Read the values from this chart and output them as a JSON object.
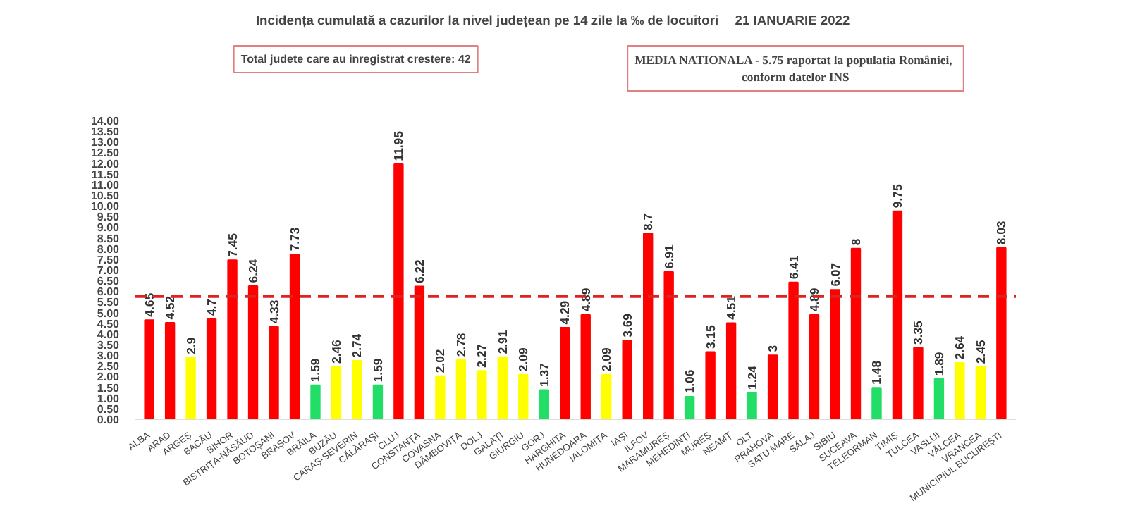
{
  "chart_data": {
    "type": "bar",
    "title": "Incidența cumulată a cazurilor la nivel județean pe 14 zile la ‰ de locuitori",
    "subtitle": "21 IANUARIE 2022",
    "annotations": [
      "Total judete care au inregistrat crestere: 42",
      "MEDIA NATIONALA - 5.75  raportat la populatia României, conform datelor INS"
    ],
    "categories": [
      "ALBA",
      "ARAD",
      "ARGEȘ",
      "BACĂU",
      "BIHOR",
      "BISTRIȚA-NĂSĂUD",
      "BOTOȘANI",
      "BRAȘOV",
      "BRĂILA",
      "BUZĂU",
      "CARAȘ-SEVERIN",
      "CĂLĂRAȘI",
      "CLUJ",
      "CONSTANȚA",
      "COVASNA",
      "DÂMBOVIȚA",
      "DOLJ",
      "GALAȚI",
      "GIURGIU",
      "GORJ",
      "HARGHITA",
      "HUNEDOARA",
      "IALOMIȚA",
      "IAȘI",
      "ILFOV",
      "MARAMUREȘ",
      "MEHEDINȚI",
      "MUREȘ",
      "NEAMȚ",
      "OLT",
      "PRAHOVA",
      "SATU MARE",
      "SĂLAJ",
      "SIBIU",
      "SUCEAVA",
      "TELEORMAN",
      "TIMIȘ",
      "TULCEA",
      "VASLUI",
      "VÂLCEA",
      "VRANCEA",
      "MUNICIPIUL BUCUREȘTI"
    ],
    "values": [
      4.65,
      4.52,
      2.9,
      4.7,
      7.45,
      6.24,
      4.33,
      7.73,
      1.59,
      2.46,
      2.74,
      1.59,
      11.95,
      6.22,
      2.02,
      2.78,
      2.27,
      2.91,
      2.09,
      1.37,
      4.29,
      4.89,
      2.09,
      3.69,
      8.7,
      6.91,
      1.06,
      3.15,
      4.51,
      1.24,
      3,
      6.41,
      4.89,
      6.07,
      8,
      1.48,
      9.75,
      3.35,
      1.89,
      2.64,
      2.45,
      8.03
    ],
    "colors": [
      "#ff0000",
      "#ff0000",
      "#ffff00",
      "#ff0000",
      "#ff0000",
      "#ff0000",
      "#ff0000",
      "#ff0000",
      "#22dd66",
      "#ffff00",
      "#ffff00",
      "#22dd66",
      "#ff0000",
      "#ff0000",
      "#ffff00",
      "#ffff00",
      "#ffff00",
      "#ffff00",
      "#ffff00",
      "#22dd66",
      "#ff0000",
      "#ff0000",
      "#ffff00",
      "#ff0000",
      "#ff0000",
      "#ff0000",
      "#22dd66",
      "#ff0000",
      "#ff0000",
      "#22dd66",
      "#ff0000",
      "#ff0000",
      "#ff0000",
      "#ff0000",
      "#ff0000",
      "#22dd66",
      "#ff0000",
      "#ff0000",
      "#22dd66",
      "#ffff00",
      "#ffff00",
      "#ff0000"
    ],
    "data_labels": true,
    "ylim": [
      0,
      14
    ],
    "yticks": [
      {
        "value": 0,
        "label": "0.00"
      },
      {
        "value": 0.5,
        "label": "0.50"
      },
      {
        "value": 1,
        "label": "1.00"
      },
      {
        "value": 1.5,
        "label": "1.50"
      },
      {
        "value": 2,
        "label": "2.00"
      },
      {
        "value": 2.5,
        "label": "2.50"
      },
      {
        "value": 3,
        "label": "3.00"
      },
      {
        "value": 3.5,
        "label": "3.50"
      },
      {
        "value": 4,
        "label": "4.00"
      },
      {
        "value": 4.5,
        "label": "4.50"
      },
      {
        "value": 5,
        "label": "5.00"
      },
      {
        "value": 5.5,
        "label": "5.50"
      },
      {
        "value": 6,
        "label": "6.00"
      },
      {
        "value": 6.5,
        "label": "6.50"
      },
      {
        "value": 7,
        "label": "7.00"
      },
      {
        "value": 7.5,
        "label": "7.50"
      },
      {
        "value": 8,
        "label": "8.00"
      },
      {
        "value": 8.5,
        "label": "8.50"
      },
      {
        "value": 9,
        "label": "9.00"
      },
      {
        "value": 9.5,
        "label": "9.50"
      },
      {
        "value": 10,
        "label": "10.00"
      },
      {
        "value": 10.5,
        "label": "10.50"
      },
      {
        "value": 11,
        "label": "11.00"
      },
      {
        "value": 11.5,
        "label": "11.50"
      },
      {
        "value": 12,
        "label": "12.00"
      },
      {
        "value": 12.5,
        "label": "12.50"
      },
      {
        "value": 13,
        "label": "13.00"
      },
      {
        "value": 13.5,
        "label": "13.50"
      },
      {
        "value": 14,
        "label": "14.00"
      }
    ],
    "ref_lines": [
      {
        "axis": "y",
        "value": 5.75,
        "color": "#dd2222",
        "line_style": "dashed"
      }
    ],
    "grid": false
  }
}
